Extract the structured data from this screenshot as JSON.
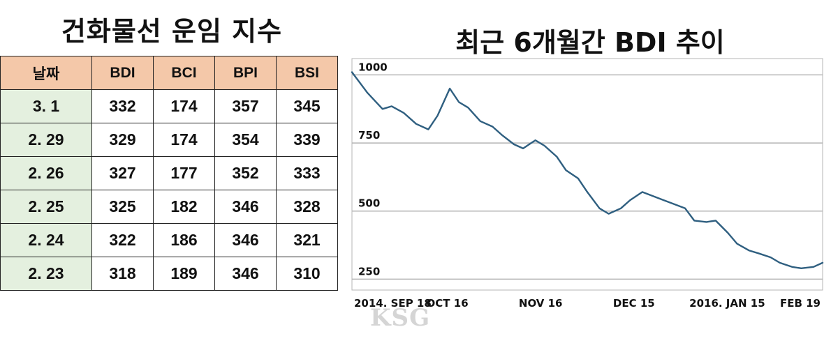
{
  "left_title": "건화물선 운임 지수",
  "right_title": "최근 6개월간 BDI 추이",
  "table": {
    "headers": [
      "날짜",
      "BDI",
      "BCI",
      "BPI",
      "BSI"
    ],
    "rows": [
      [
        "3. 1",
        "332",
        "174",
        "357",
        "345"
      ],
      [
        "2. 29",
        "329",
        "174",
        "354",
        "339"
      ],
      [
        "2. 26",
        "327",
        "177",
        "352",
        "333"
      ],
      [
        "2. 25",
        "325",
        "182",
        "346",
        "328"
      ],
      [
        "2. 24",
        "322",
        "186",
        "346",
        "321"
      ],
      [
        "2. 23",
        "318",
        "189",
        "346",
        "310"
      ]
    ]
  },
  "watermark": "KSG",
  "colors": {
    "header_bg": "#f4c8a9",
    "date_bg": "#e4f0df",
    "line": "#2f5f80",
    "grid": "#b5b5b5"
  },
  "chart_data": [
    {
      "type": "table",
      "title": "건화물선 운임 지수",
      "columns": [
        "날짜",
        "BDI",
        "BCI",
        "BPI",
        "BSI"
      ],
      "rows": [
        [
          "3. 1",
          332,
          174,
          357,
          345
        ],
        [
          "2. 29",
          329,
          174,
          354,
          339
        ],
        [
          "2. 26",
          327,
          177,
          352,
          333
        ],
        [
          "2. 25",
          325,
          182,
          346,
          328
        ],
        [
          "2. 24",
          322,
          186,
          346,
          321
        ],
        [
          "2. 23",
          318,
          189,
          346,
          310
        ]
      ]
    },
    {
      "type": "line",
      "title": "최근 6개월간 BDI 추이",
      "x_ticks": [
        "2014. SEP 18",
        "OCT 16",
        "NOV 16",
        "DEC 15",
        "2016. JAN 15",
        "FEB 19"
      ],
      "y_ticks": [
        1000,
        750,
        500,
        250
      ],
      "ylim": [
        210,
        1060
      ],
      "grid": true,
      "series": [
        {
          "x": [
            "2015-09-18",
            "2015-09-23",
            "2015-09-28",
            "2015-10-01",
            "2015-10-05",
            "2015-10-09",
            "2015-10-13",
            "2015-10-16",
            "2015-10-20",
            "2015-10-23",
            "2015-10-26",
            "2015-10-30",
            "2015-11-03",
            "2015-11-06",
            "2015-11-10",
            "2015-11-13",
            "2015-11-17",
            "2015-11-20",
            "2015-11-24",
            "2015-11-27",
            "2015-12-01",
            "2015-12-04",
            "2015-12-08",
            "2015-12-11",
            "2015-12-15",
            "2015-12-18",
            "2015-12-22",
            "2015-12-29",
            "2016-01-05",
            "2016-01-08",
            "2016-01-12",
            "2016-01-15",
            "2016-01-19",
            "2016-01-22",
            "2016-01-26",
            "2016-01-29",
            "2016-02-02",
            "2016-02-05",
            "2016-02-09",
            "2016-02-12",
            "2016-02-16",
            "2016-02-19"
          ],
          "values": [
            1010,
            935,
            875,
            885,
            860,
            820,
            800,
            850,
            950,
            900,
            880,
            830,
            810,
            780,
            745,
            730,
            760,
            740,
            700,
            650,
            620,
            570,
            510,
            490,
            510,
            540,
            570,
            540,
            510,
            465,
            460,
            465,
            420,
            380,
            355,
            345,
            330,
            310,
            295,
            290,
            295,
            310
          ]
        }
      ]
    }
  ]
}
